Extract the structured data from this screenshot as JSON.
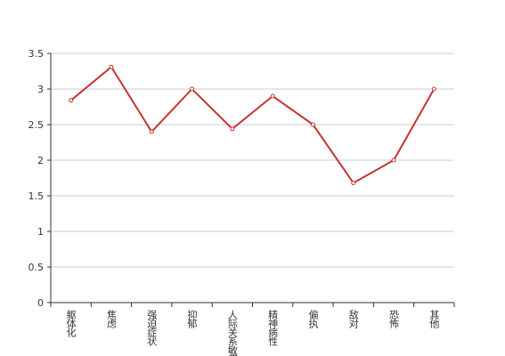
{
  "chart_data": {
    "type": "line",
    "categories": [
      "躯体化",
      "焦虑",
      "强迫症状",
      "抑郁",
      "人际关系敏感",
      "精神病性",
      "偏执",
      "敌对",
      "恐怖",
      "其他"
    ],
    "values": [
      2.84,
      3.31,
      2.4,
      3.0,
      2.44,
      2.9,
      2.5,
      1.68,
      2.0,
      3.0
    ],
    "color": "#c23531",
    "ylim": [
      0,
      3.5
    ],
    "yticks": [
      0,
      0.5,
      1,
      1.5,
      2,
      2.5,
      3,
      3.5
    ],
    "grid": true
  }
}
